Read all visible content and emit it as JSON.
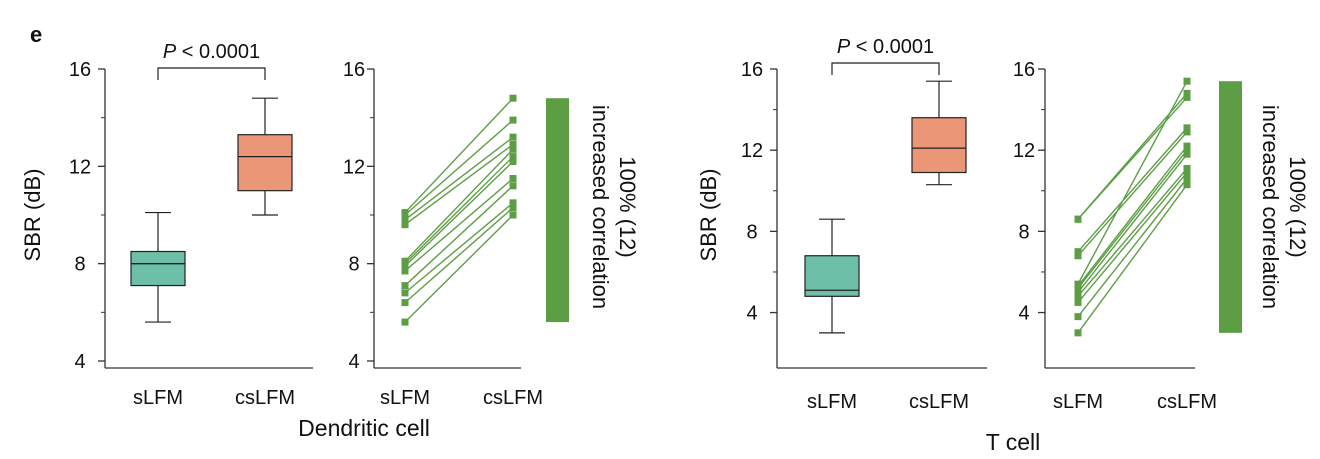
{
  "panel_letter": "e",
  "colors": {
    "box_sLFM": "#6dbfa8",
    "box_csLFM": "#ec9678",
    "paired": "#5d9e45",
    "bar": "#5d9e45",
    "axis": "#333333"
  },
  "groups": [
    {
      "name": "Dendritic cell",
      "pvalue_p": "P",
      "pvalue_rest": " < 0.0001",
      "bar_label_1": "100% (12)",
      "bar_label_2": "increased correlation"
    },
    {
      "name": "T cell",
      "pvalue_p": "P",
      "pvalue_rest": " < 0.0001",
      "bar_label_1": "100% (12)",
      "bar_label_2": "increased correlation"
    }
  ],
  "chart_data": [
    {
      "type": "box",
      "group": "Dendritic cell",
      "ylabel": "SBR (dB)",
      "ylim": [
        4,
        16
      ],
      "yticks": [
        4,
        8,
        12,
        16
      ],
      "categories": [
        "sLFM",
        "csLFM"
      ],
      "boxes": [
        {
          "name": "sLFM",
          "min": 5.6,
          "q1": 7.1,
          "median": 8.0,
          "q3": 8.5,
          "max": 10.1
        },
        {
          "name": "csLFM",
          "min": 10.0,
          "q1": 11.0,
          "median": 12.4,
          "q3": 13.3,
          "max": 14.8
        }
      ]
    },
    {
      "type": "line",
      "group": "Dendritic cell",
      "ylim": [
        4,
        16
      ],
      "yticks": [
        4,
        8,
        12,
        16
      ],
      "categories": [
        "sLFM",
        "csLFM"
      ],
      "pairs": [
        [
          5.6,
          10.0
        ],
        [
          6.4,
          10.3
        ],
        [
          6.8,
          10.5
        ],
        [
          7.1,
          11.2
        ],
        [
          7.7,
          11.5
        ],
        [
          7.9,
          12.2
        ],
        [
          8.0,
          12.4
        ],
        [
          8.1,
          12.7
        ],
        [
          9.6,
          12.9
        ],
        [
          9.8,
          13.2
        ],
        [
          10.0,
          13.9
        ],
        [
          10.1,
          14.8
        ]
      ],
      "bar": {
        "min": 5.6,
        "max": 14.8
      }
    },
    {
      "type": "box",
      "group": "T cell",
      "ylabel": "SBR (dB)",
      "ylim": [
        2.5,
        16
      ],
      "yticks": [
        4,
        8,
        12,
        16
      ],
      "categories": [
        "sLFM",
        "csLFM"
      ],
      "boxes": [
        {
          "name": "sLFM",
          "min": 3.0,
          "q1": 4.8,
          "median": 5.1,
          "q3": 6.8,
          "max": 8.6
        },
        {
          "name": "csLFM",
          "min": 10.3,
          "q1": 10.9,
          "median": 12.1,
          "q3": 13.6,
          "max": 15.4
        }
      ]
    },
    {
      "type": "line",
      "group": "T cell",
      "ylim": [
        2.5,
        16
      ],
      "yticks": [
        4,
        8,
        12,
        16
      ],
      "categories": [
        "sLFM",
        "csLFM"
      ],
      "pairs": [
        [
          3.0,
          10.3
        ],
        [
          3.8,
          10.6
        ],
        [
          4.5,
          10.9
        ],
        [
          4.8,
          11.1
        ],
        [
          5.0,
          11.8
        ],
        [
          5.2,
          12.0
        ],
        [
          5.3,
          12.2
        ],
        [
          6.8,
          12.9
        ],
        [
          7.0,
          13.1
        ],
        [
          8.6,
          14.6
        ],
        [
          8.6,
          14.8
        ],
        [
          5.4,
          15.4
        ]
      ],
      "bar": {
        "min": 3.0,
        "max": 15.4
      }
    }
  ]
}
